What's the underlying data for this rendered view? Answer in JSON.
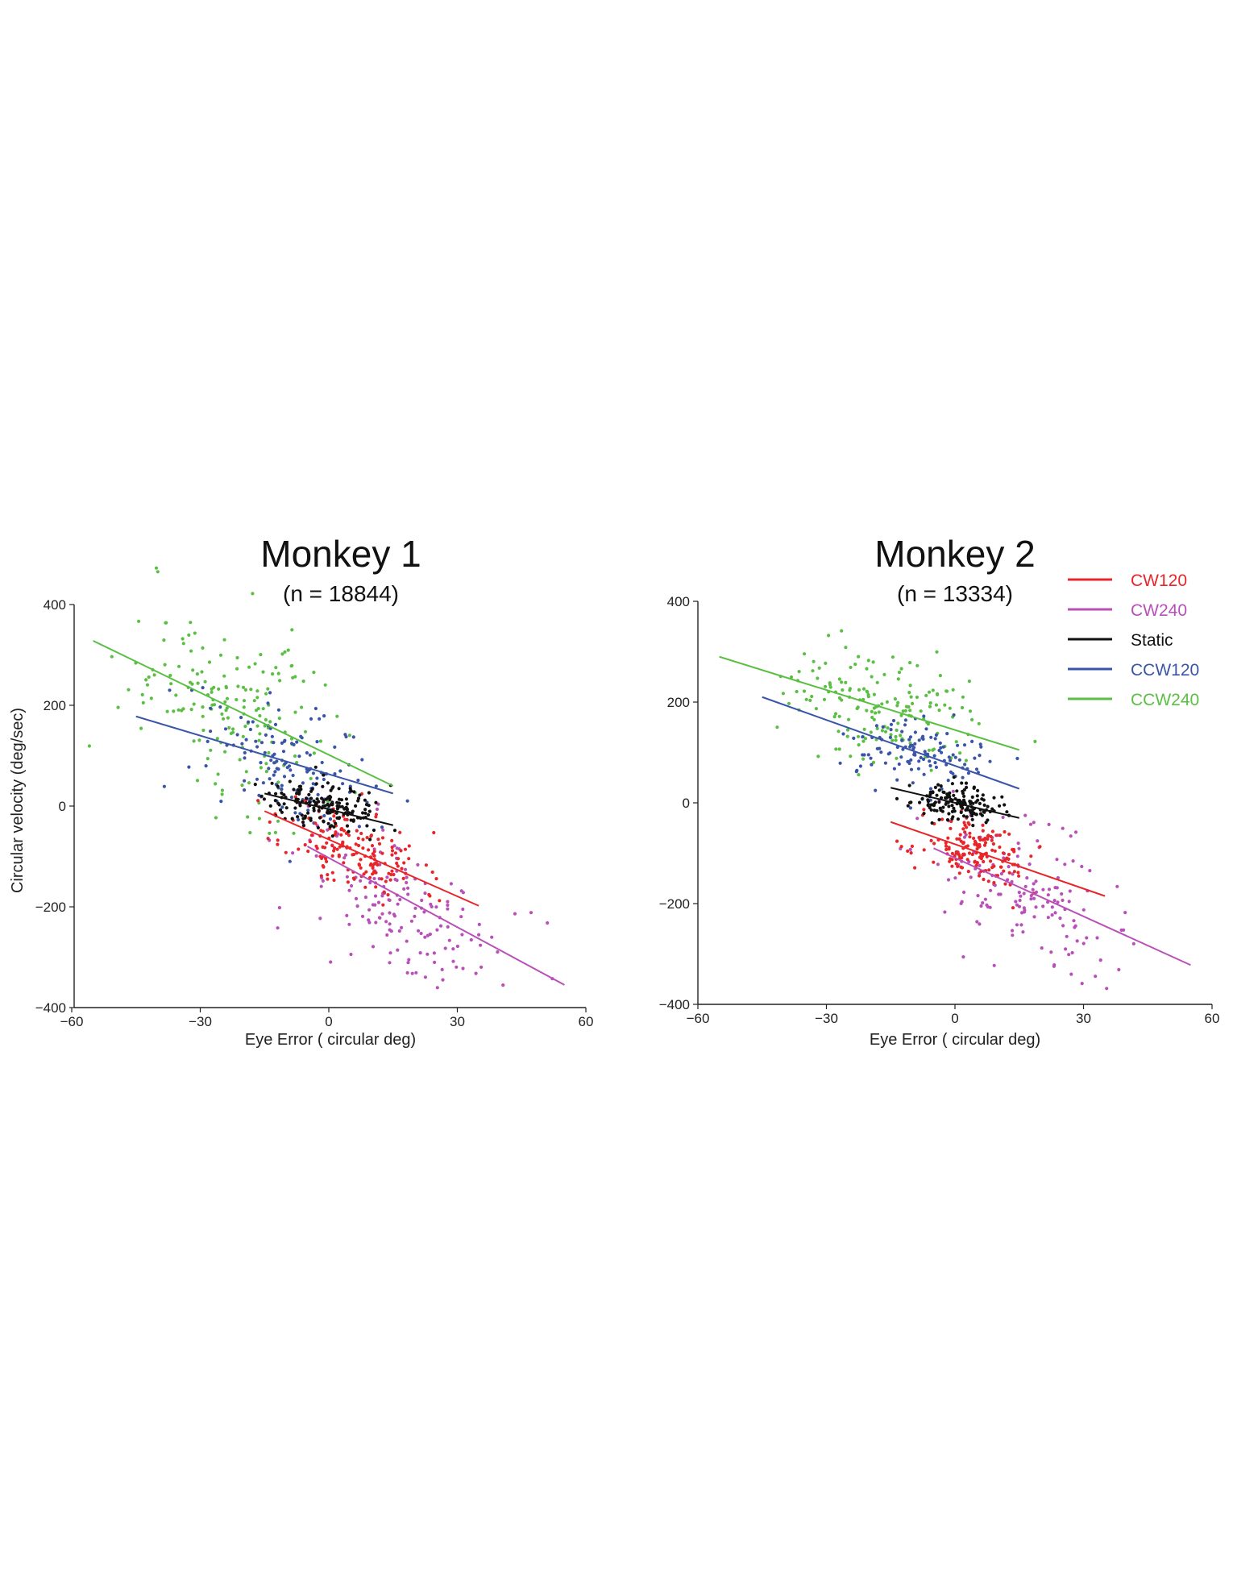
{
  "chart_data": [
    {
      "type": "scatter",
      "title": "Monkey 1",
      "subtitle": "(n = 18844)",
      "xlabel": "Eye Error ( circular deg)",
      "ylabel": "Circular velocity (deg/sec)",
      "xlim": [
        -60,
        60
      ],
      "ylim": [
        -400,
        400
      ],
      "xticks": [
        "−60",
        "−30",
        "0",
        "30",
        "60"
      ],
      "yticks": [
        "400",
        "200",
        "0",
        "−200",
        "−400"
      ],
      "grid": false,
      "series": [
        {
          "name": "CW120",
          "color": "#e8262a",
          "fit": {
            "x": [
              -15,
              35
            ],
            "y": [
              -10,
              -198
            ]
          },
          "cloud": {
            "cx": 6,
            "cy": -88,
            "sx": 8,
            "sy": 48,
            "rho": -0.45,
            "n": 170,
            "seed": 11
          }
        },
        {
          "name": "CW240",
          "color": "#b94fb8",
          "fit": {
            "x": [
              -5,
              55
            ],
            "y": [
              -80,
              -355
            ]
          },
          "cloud": {
            "cx": 18,
            "cy": -210,
            "sx": 12,
            "sy": 85,
            "rho": -0.5,
            "n": 160,
            "seed": 12
          }
        },
        {
          "name": "Static",
          "color": "#111111",
          "fit": {
            "x": [
              -15,
              15
            ],
            "y": [
              25,
              -38
            ]
          },
          "cloud": {
            "cx": -1,
            "cy": 0,
            "sx": 7,
            "sy": 24,
            "rho": -0.35,
            "n": 170,
            "seed": 13
          }
        },
        {
          "name": "CCW120",
          "color": "#3a55a8",
          "fit": {
            "x": [
              -45,
              15
            ],
            "y": [
              178,
              25
            ]
          },
          "cloud": {
            "cx": -8,
            "cy": 80,
            "sx": 10,
            "sy": 65,
            "rho": -0.4,
            "n": 140,
            "seed": 14
          }
        },
        {
          "name": "CCW240",
          "color": "#5bbf44",
          "fit": {
            "x": [
              -55,
              15
            ],
            "y": [
              328,
              40
            ]
          },
          "cloud": {
            "cx": -22,
            "cy": 200,
            "sx": 12,
            "sy": 100,
            "rho": -0.4,
            "n": 180,
            "seed": 15
          }
        }
      ]
    },
    {
      "type": "scatter",
      "title": "Monkey 2",
      "subtitle": "(n = 13334)",
      "xlabel": "Eye Error ( circular deg)",
      "ylabel": "",
      "xlim": [
        -60,
        60
      ],
      "ylim": [
        -400,
        400
      ],
      "xticks": [
        "−60",
        "−30",
        "0",
        "30",
        "60"
      ],
      "yticks": [
        "400",
        "200",
        "0",
        "−200",
        "−400"
      ],
      "grid": false,
      "series": [
        {
          "name": "CW120",
          "color": "#e8262a",
          "fit": {
            "x": [
              -15,
              35
            ],
            "y": [
              -38,
              -185
            ]
          },
          "cloud": {
            "cx": 5,
            "cy": -100,
            "sx": 6,
            "sy": 32,
            "rho": -0.35,
            "n": 160,
            "seed": 21
          }
        },
        {
          "name": "CW240",
          "color": "#b94fb8",
          "fit": {
            "x": [
              -5,
              55
            ],
            "y": [
              -90,
              -322
            ]
          },
          "cloud": {
            "cx": 17,
            "cy": -180,
            "sx": 10,
            "sy": 75,
            "rho": -0.5,
            "n": 150,
            "seed": 22
          }
        },
        {
          "name": "Static",
          "color": "#111111",
          "fit": {
            "x": [
              -15,
              15
            ],
            "y": [
              30,
              -30
            ]
          },
          "cloud": {
            "cx": 0,
            "cy": -2,
            "sx": 5,
            "sy": 18,
            "rho": -0.3,
            "n": 150,
            "seed": 23
          }
        },
        {
          "name": "CCW120",
          "color": "#3a55a8",
          "fit": {
            "x": [
              -45,
              15
            ],
            "y": [
              210,
              28
            ]
          },
          "cloud": {
            "cx": -10,
            "cy": 100,
            "sx": 8,
            "sy": 40,
            "rho": -0.35,
            "n": 120,
            "seed": 24
          }
        },
        {
          "name": "CCW240",
          "color": "#5bbf44",
          "fit": {
            "x": [
              -55,
              15
            ],
            "y": [
              290,
              105
            ]
          },
          "cloud": {
            "cx": -17,
            "cy": 185,
            "sx": 11,
            "sy": 55,
            "rho": -0.4,
            "n": 170,
            "seed": 25
          }
        }
      ]
    }
  ],
  "legend": {
    "placement": "top-right",
    "items": [
      {
        "label": "CW120",
        "color": "#e8262a"
      },
      {
        "label": "CW240",
        "color": "#b94fb8"
      },
      {
        "label": "Static",
        "color": "#111111"
      },
      {
        "label": "CCW120",
        "color": "#3a55a8"
      },
      {
        "label": "CCW240",
        "color": "#5bbf44"
      }
    ]
  }
}
